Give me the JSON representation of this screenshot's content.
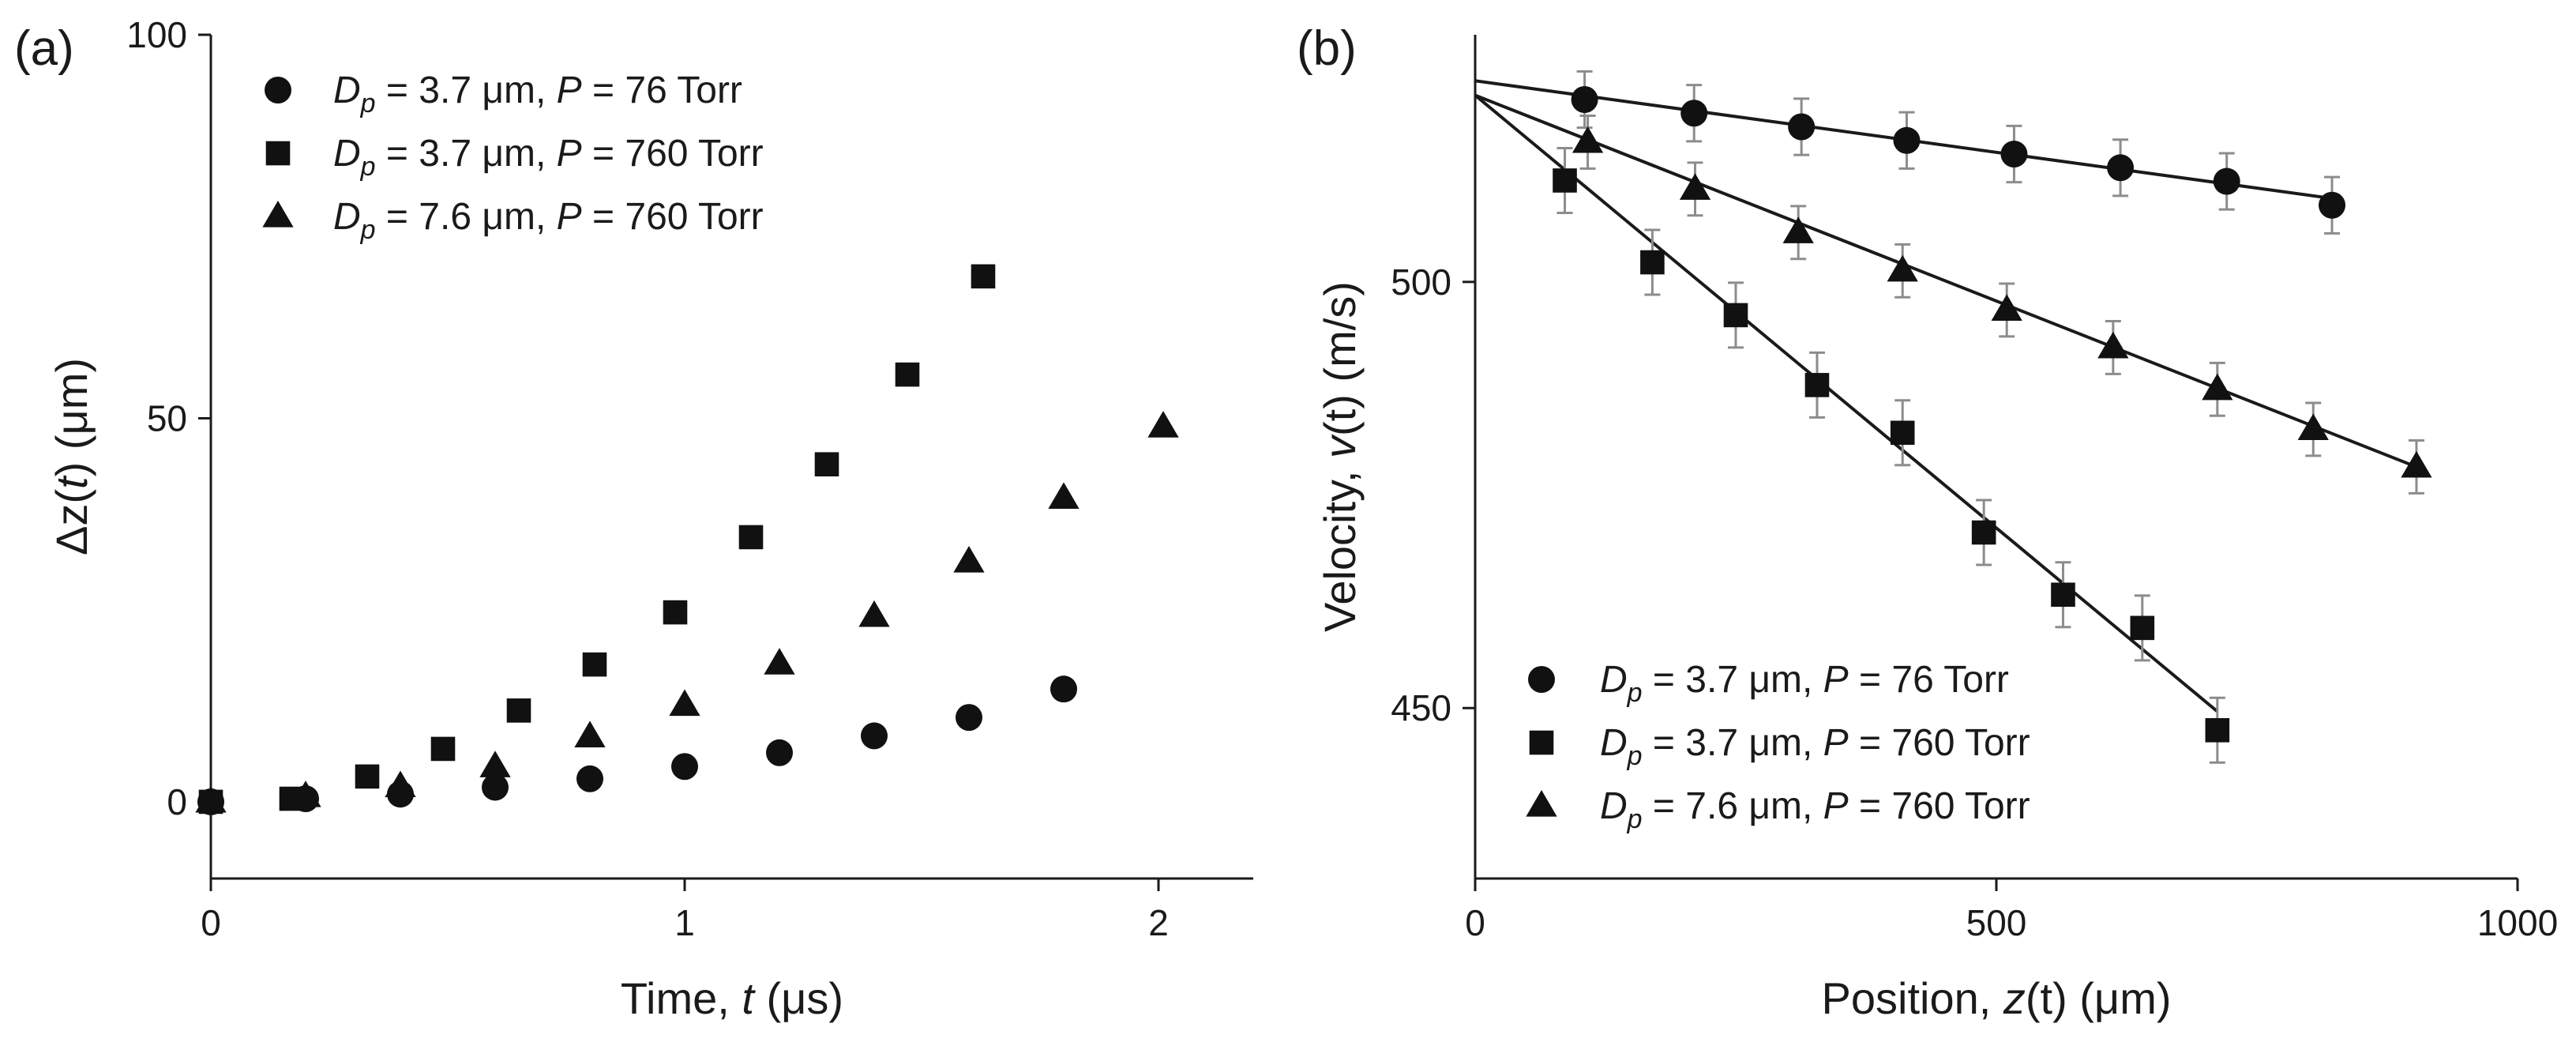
{
  "chart_data": [
    {
      "panel_label": "(a)",
      "type": "scatter",
      "xlabel": {
        "pre": "Time, ",
        "var": "t",
        "post": " (μs)"
      },
      "ylabel": {
        "pre": "Δz(",
        "var": "t",
        "post": ") (μm)"
      },
      "xlim": [
        0,
        2.2
      ],
      "ylim": [
        -10,
        100
      ],
      "xticks": [
        0,
        1,
        2
      ],
      "yticks": [
        0,
        50,
        100
      ],
      "legend_position": "top-left",
      "series": [
        {
          "name": "Dp = 3.7 μm, P = 76 Torr",
          "marker": "circle",
          "legend": {
            "dsub": "p",
            "dval": " = 3.7 μm, ",
            "pval": " = 76 Torr"
          },
          "points": [
            [
              0,
              0
            ],
            [
              0.2,
              0.4
            ],
            [
              0.4,
              1.0
            ],
            [
              0.6,
              1.9
            ],
            [
              0.8,
              3.0
            ],
            [
              1.0,
              4.6
            ],
            [
              1.2,
              6.4
            ],
            [
              1.4,
              8.6
            ],
            [
              1.6,
              11.0
            ],
            [
              1.8,
              14.7
            ]
          ]
        },
        {
          "name": "Dp = 3.7 μm, P = 760 Torr",
          "marker": "square",
          "legend": {
            "dsub": "p",
            "dval": " = 3.7 μm, ",
            "pval": " = 760 Torr"
          },
          "points": [
            [
              0,
              0
            ],
            [
              0.17,
              0.4
            ],
            [
              0.33,
              3.3
            ],
            [
              0.49,
              6.9
            ],
            [
              0.65,
              11.9
            ],
            [
              0.81,
              17.9
            ],
            [
              0.98,
              24.7
            ],
            [
              1.14,
              34.5
            ],
            [
              1.3,
              44.0
            ],
            [
              1.47,
              55.7
            ],
            [
              1.63,
              68.5
            ]
          ]
        },
        {
          "name": "Dp = 7.6 μm, P = 760 Torr",
          "marker": "triangle",
          "legend": {
            "dsub": "p",
            "dval": " = 7.6 μm, ",
            "pval": " = 760 Torr"
          },
          "points": [
            [
              0,
              0
            ],
            [
              0.2,
              0.7
            ],
            [
              0.4,
              2.0
            ],
            [
              0.6,
              4.6
            ],
            [
              0.8,
              8.5
            ],
            [
              1.0,
              12.6
            ],
            [
              1.2,
              18.0
            ],
            [
              1.4,
              24.2
            ],
            [
              1.6,
              31.3
            ],
            [
              1.8,
              39.6
            ],
            [
              2.01,
              48.9
            ]
          ]
        }
      ]
    },
    {
      "panel_label": "(b)",
      "type": "scatter",
      "xlabel": {
        "pre": "Position, ",
        "var": "z",
        "post": "(t) (μm)"
      },
      "ylabel": {
        "pre": "Velocity, ",
        "var": "v",
        "post": "(t) (m/s)"
      },
      "xlim": [
        0,
        1000
      ],
      "ylim": [
        430,
        529
      ],
      "xticks": [
        0,
        500,
        1000
      ],
      "yticks": [
        450,
        500
      ],
      "legend_position": "bottom-left",
      "series": [
        {
          "name": "Dp = 3.7 μm, P = 76 Torr",
          "marker": "circle",
          "legend": {
            "dsub": "p",
            "dval": " = 3.7 μm, ",
            "pval": " = 76 Torr"
          },
          "points": [
            [
              105,
              521.4
            ],
            [
              210,
              519.8
            ],
            [
              313,
              518.2
            ],
            [
              414,
              516.6
            ],
            [
              517,
              515.0
            ],
            [
              619,
              513.4
            ],
            [
              721,
              511.8
            ],
            [
              822,
              509.0
            ]
          ],
          "error": 3.3,
          "fit": [
            [
              0,
              523.6
            ],
            [
              822,
              509.8
            ]
          ]
        },
        {
          "name": "Dp = 3.7 μm, P = 760 Torr",
          "marker": "square",
          "legend": {
            "dsub": "p",
            "dval": " = 3.7 μm, ",
            "pval": " = 760 Torr"
          },
          "points": [
            [
              86,
              511.9
            ],
            [
              170,
              502.3
            ],
            [
              250,
              496.1
            ],
            [
              328,
              487.9
            ],
            [
              410,
              482.3
            ],
            [
              488,
              470.6
            ],
            [
              564,
              463.3
            ],
            [
              640,
              459.4
            ],
            [
              712,
              447.4
            ]
          ],
          "error": 3.8,
          "fit": [
            [
              0,
              521.9
            ],
            [
              712,
              449.6
            ]
          ]
        },
        {
          "name": "Dp = 7.6 μm, P = 760 Torr",
          "marker": "triangle",
          "legend": {
            "dsub": "p",
            "dval": " = 7.6 μm, ",
            "pval": " = 760 Torr"
          },
          "points": [
            [
              108,
              516.4
            ],
            [
              211,
              510.9
            ],
            [
              310,
              505.8
            ],
            [
              410,
              501.3
            ],
            [
              510,
              496.7
            ],
            [
              612,
              492.3
            ],
            [
              712,
              487.4
            ],
            [
              804,
              482.7
            ],
            [
              903,
              478.3
            ]
          ],
          "error": 3.1,
          "fit": [
            [
              0,
              521.9
            ],
            [
              903,
              478.3
            ]
          ]
        }
      ]
    }
  ]
}
